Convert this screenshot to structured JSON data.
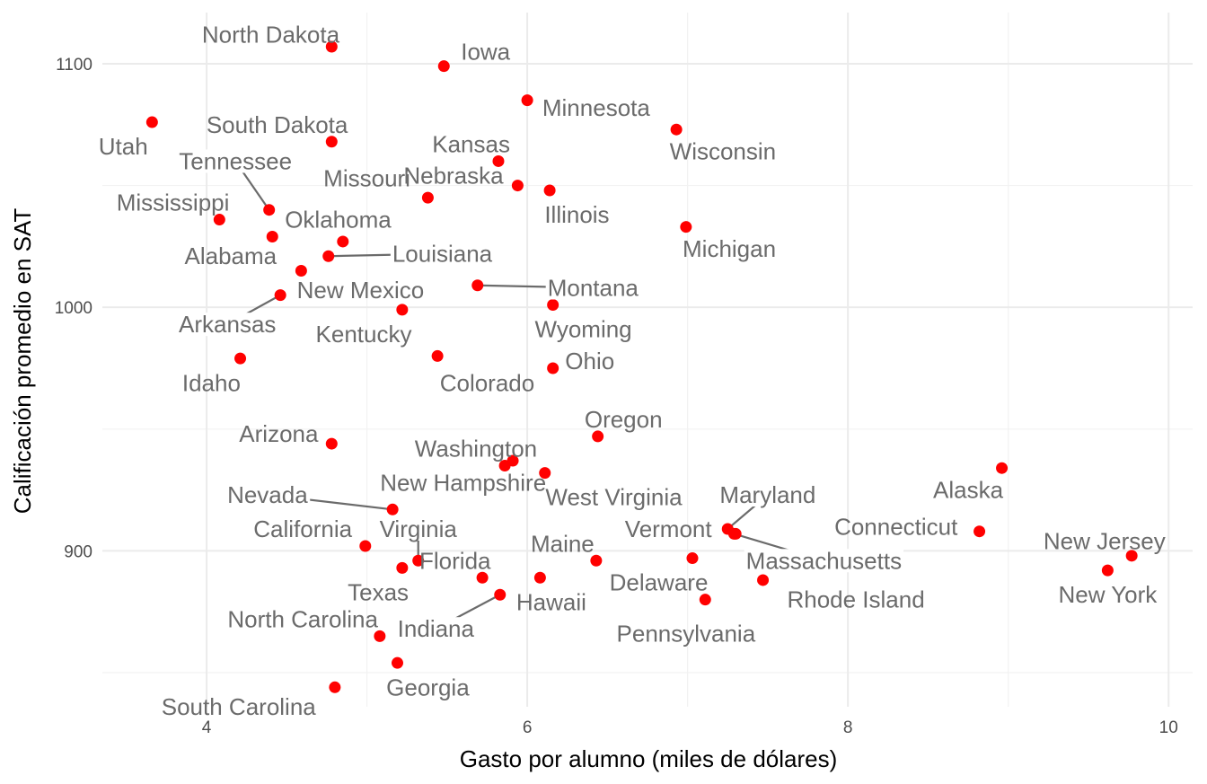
{
  "chart_data": {
    "type": "scatter",
    "title": "",
    "xlabel": "Gasto por alumno (miles de dólares)",
    "ylabel": "Calificación promedio en SAT",
    "xlim": [
      3.35,
      10.15
    ],
    "ylim": [
      836,
      1121
    ],
    "x_ticks": [
      4,
      6,
      8,
      10
    ],
    "x_minor": [
      5,
      7,
      9
    ],
    "y_ticks": [
      900,
      1000,
      1100
    ],
    "y_minor": [
      850,
      950,
      1050
    ],
    "grid": true,
    "point_color": "#ff0000",
    "label_color": "#6b6b6b",
    "points": [
      {
        "name": "Alabama",
        "x": 4.41,
        "y": 1029,
        "label_x": 4.15,
        "label_y": 1021
      },
      {
        "name": "Alaska",
        "x": 8.96,
        "y": 934,
        "label_x": 8.75,
        "label_y": 925
      },
      {
        "name": "Arizona",
        "x": 4.78,
        "y": 944,
        "label_x": 4.45,
        "label_y": 948
      },
      {
        "name": "Arkansas",
        "x": 4.46,
        "y": 1005,
        "label_x": 4.13,
        "label_y": 993,
        "leader": true
      },
      {
        "name": "California",
        "x": 4.99,
        "y": 902,
        "label_x": 4.6,
        "label_y": 909
      },
      {
        "name": "Colorado",
        "x": 5.44,
        "y": 980,
        "label_x": 5.75,
        "label_y": 969
      },
      {
        "name": "Connecticut",
        "x": 8.82,
        "y": 908,
        "label_x": 8.3,
        "label_y": 910
      },
      {
        "name": "Delaware",
        "x": 7.03,
        "y": 897,
        "label_x": 6.82,
        "label_y": 887
      },
      {
        "name": "Florida",
        "x": 5.72,
        "y": 889,
        "label_x": 5.55,
        "label_y": 896
      },
      {
        "name": "Georgia",
        "x": 5.19,
        "y": 854,
        "label_x": 5.38,
        "label_y": 844
      },
      {
        "name": "Hawaii",
        "x": 6.08,
        "y": 889,
        "label_x": 6.15,
        "label_y": 879
      },
      {
        "name": "Idaho",
        "x": 4.21,
        "y": 979,
        "label_x": 4.03,
        "label_y": 969
      },
      {
        "name": "Illinois",
        "x": 6.14,
        "y": 1048,
        "label_x": 6.31,
        "label_y": 1038
      },
      {
        "name": "Indiana",
        "x": 5.83,
        "y": 882,
        "label_x": 5.43,
        "label_y": 868,
        "leader": true
      },
      {
        "name": "Iowa",
        "x": 5.48,
        "y": 1099,
        "label_x": 5.74,
        "label_y": 1105
      },
      {
        "name": "Kansas",
        "x": 5.82,
        "y": 1060,
        "label_x": 5.65,
        "label_y": 1067
      },
      {
        "name": "Kentucky",
        "x": 5.22,
        "y": 999,
        "label_x": 4.98,
        "label_y": 989
      },
      {
        "name": "Louisiana",
        "x": 4.76,
        "y": 1021,
        "label_x": 5.47,
        "label_y": 1022,
        "leader": true
      },
      {
        "name": "Maine",
        "x": 6.43,
        "y": 896,
        "label_x": 6.22,
        "label_y": 903
      },
      {
        "name": "Maryland",
        "x": 7.25,
        "y": 909,
        "label_x": 7.5,
        "label_y": 923,
        "leader": true
      },
      {
        "name": "Massachusetts",
        "x": 7.29,
        "y": 907,
        "label_x": 7.85,
        "label_y": 896,
        "leader": true
      },
      {
        "name": "Michigan",
        "x": 6.99,
        "y": 1033,
        "label_x": 7.26,
        "label_y": 1024
      },
      {
        "name": "Minnesota",
        "x": 6.0,
        "y": 1085,
        "label_x": 6.43,
        "label_y": 1082
      },
      {
        "name": "Mississippi",
        "x": 4.08,
        "y": 1036,
        "label_x": 3.79,
        "label_y": 1043
      },
      {
        "name": "Missouri",
        "x": 5.38,
        "y": 1045,
        "label_x": 5.0,
        "label_y": 1053
      },
      {
        "name": "Montana",
        "x": 5.69,
        "y": 1009,
        "label_x": 6.41,
        "label_y": 1008,
        "leader": true
      },
      {
        "name": "Nebraska",
        "x": 5.94,
        "y": 1050,
        "label_x": 5.54,
        "label_y": 1054
      },
      {
        "name": "Nevada",
        "x": 5.16,
        "y": 917,
        "label_x": 4.38,
        "label_y": 923,
        "leader": true
      },
      {
        "name": "New Hampshire",
        "x": 5.86,
        "y": 935,
        "label_x": 5.6,
        "label_y": 928
      },
      {
        "name": "New Jersey",
        "x": 9.77,
        "y": 898,
        "label_x": 9.6,
        "label_y": 904
      },
      {
        "name": "New Mexico",
        "x": 4.59,
        "y": 1015,
        "label_x": 4.96,
        "label_y": 1007
      },
      {
        "name": "New York",
        "x": 9.62,
        "y": 892,
        "label_x": 9.62,
        "label_y": 882
      },
      {
        "name": "North Carolina",
        "x": 5.08,
        "y": 865,
        "label_x": 4.6,
        "label_y": 872
      },
      {
        "name": "North Dakota",
        "x": 4.78,
        "y": 1107,
        "label_x": 4.4,
        "label_y": 1112
      },
      {
        "name": "Ohio",
        "x": 6.16,
        "y": 975,
        "label_x": 6.39,
        "label_y": 978
      },
      {
        "name": "Oklahoma",
        "x": 4.85,
        "y": 1027,
        "label_x": 4.82,
        "label_y": 1036
      },
      {
        "name": "Oregon",
        "x": 6.44,
        "y": 947,
        "label_x": 6.6,
        "label_y": 954
      },
      {
        "name": "Pennsylvania",
        "x": 7.11,
        "y": 880,
        "label_x": 6.99,
        "label_y": 866
      },
      {
        "name": "Rhode Island",
        "x": 7.47,
        "y": 888,
        "label_x": 8.05,
        "label_y": 880
      },
      {
        "name": "South Carolina",
        "x": 4.8,
        "y": 844,
        "label_x": 4.2,
        "label_y": 836
      },
      {
        "name": "South Dakota",
        "x": 4.78,
        "y": 1068,
        "label_x": 4.44,
        "label_y": 1075
      },
      {
        "name": "Tennessee",
        "x": 4.39,
        "y": 1040,
        "label_x": 4.18,
        "label_y": 1060,
        "leader": true
      },
      {
        "name": "Texas",
        "x": 5.22,
        "y": 893,
        "label_x": 5.07,
        "label_y": 883
      },
      {
        "name": "Utah",
        "x": 3.66,
        "y": 1076,
        "label_x": 3.48,
        "label_y": 1066
      },
      {
        "name": "Vermont",
        "x": 7.3,
        "y": 907,
        "label_x": 6.88,
        "label_y": 909
      },
      {
        "name": "Virginia",
        "x": 5.32,
        "y": 896,
        "label_x": 5.32,
        "label_y": 909,
        "leader": true
      },
      {
        "name": "Washington",
        "x": 5.91,
        "y": 937,
        "label_x": 5.68,
        "label_y": 942
      },
      {
        "name": "West Virginia",
        "x": 6.11,
        "y": 932,
        "label_x": 6.54,
        "label_y": 922
      },
      {
        "name": "Wisconsin",
        "x": 6.93,
        "y": 1073,
        "label_x": 7.22,
        "label_y": 1064
      },
      {
        "name": "Wyoming",
        "x": 6.16,
        "y": 1001,
        "label_x": 6.35,
        "label_y": 991
      }
    ]
  }
}
